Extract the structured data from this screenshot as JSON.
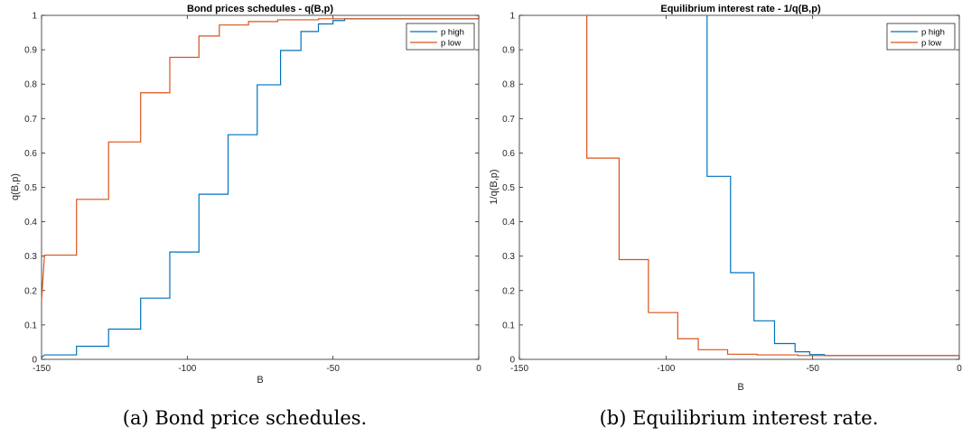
{
  "chart_data": [
    {
      "type": "line",
      "title": "Bond prices schedules - q(B,p)",
      "xlabel": "B",
      "ylabel": "q(B,p)",
      "xlim": [
        -150,
        0
      ],
      "ylim": [
        0,
        1
      ],
      "xticks": [
        "-150",
        "-100",
        "-50",
        "0"
      ],
      "yticks": [
        "0",
        "0.1",
        "0.2",
        "0.3",
        "0.4",
        "0.5",
        "0.6",
        "0.7",
        "0.8",
        "0.9",
        "1"
      ],
      "legend": "top-right",
      "caption": "(a) Bond price schedules.",
      "series": [
        {
          "name": "p high",
          "color": "#0072BD",
          "x": [
            -150,
            -149,
            -138,
            -138,
            -127,
            -127,
            -116,
            -116,
            -106,
            -106,
            -96,
            -96,
            -86,
            -86,
            -76,
            -76,
            -68,
            -68,
            -61,
            -61,
            -55,
            -55,
            -50,
            -50,
            -46,
            -46,
            0
          ],
          "y": [
            0.005,
            0.013,
            0.013,
            0.038,
            0.038,
            0.088,
            0.088,
            0.178,
            0.178,
            0.312,
            0.312,
            0.48,
            0.48,
            0.653,
            0.653,
            0.798,
            0.798,
            0.898,
            0.898,
            0.953,
            0.953,
            0.975,
            0.975,
            0.985,
            0.985,
            0.99,
            0.99
          ]
        },
        {
          "name": "p low",
          "color": "#D95319",
          "x": [
            -150,
            -149,
            -138,
            -138,
            -127,
            -127,
            -116,
            -116,
            -106,
            -106,
            -96,
            -96,
            -89,
            -89,
            -79,
            -79,
            -69,
            -69,
            -55,
            -55,
            0
          ],
          "y": [
            0.17,
            0.303,
            0.303,
            0.465,
            0.465,
            0.632,
            0.632,
            0.775,
            0.775,
            0.878,
            0.878,
            0.94,
            0.94,
            0.972,
            0.972,
            0.982,
            0.982,
            0.987,
            0.987,
            0.99,
            0.99
          ]
        }
      ]
    },
    {
      "type": "line",
      "title": "Equilibrium interest rate - 1/q(B,p)",
      "xlabel": "B",
      "ylabel": "1/q(B,p)",
      "xlim": [
        -150,
        0
      ],
      "ylim": [
        0,
        1
      ],
      "xticks": [
        "-150",
        "-100",
        "-50",
        "0"
      ],
      "yticks": [
        "0",
        "0.1",
        "0.2",
        "0.3",
        "0.4",
        "0.5",
        "0.6",
        "0.7",
        "0.8",
        "0.9",
        "1"
      ],
      "legend": "top-right",
      "caption": "(b) Equilibrium interest rate.",
      "series": [
        {
          "name": "p high",
          "color": "#0072BD",
          "x": [
            -86,
            -86,
            -78,
            -78,
            -70,
            -70,
            -63,
            -63,
            -56,
            -56,
            -51,
            -51,
            -46,
            -46,
            0
          ],
          "y": [
            1.0,
            0.532,
            0.532,
            0.252,
            0.252,
            0.112,
            0.112,
            0.046,
            0.046,
            0.022,
            0.022,
            0.014,
            0.014,
            0.011,
            0.011
          ]
        },
        {
          "name": "p low",
          "color": "#D95319",
          "x": [
            -127,
            -127,
            -116,
            -116,
            -106,
            -106,
            -96,
            -96,
            -89,
            -89,
            -79,
            -79,
            -69,
            -69,
            -55,
            -55,
            0
          ],
          "y": [
            1.0,
            0.585,
            0.585,
            0.29,
            0.29,
            0.136,
            0.136,
            0.06,
            0.06,
            0.028,
            0.028,
            0.015,
            0.015,
            0.013,
            0.013,
            0.011,
            0.011
          ]
        }
      ]
    }
  ]
}
